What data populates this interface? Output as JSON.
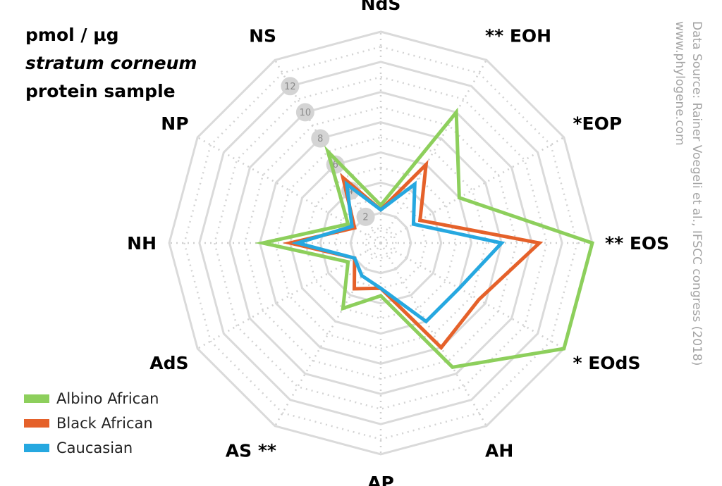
{
  "title": {
    "line1": "pmol / µg",
    "line2": "stratum corneum",
    "line3": "protein sample"
  },
  "source": {
    "line1": "Data Source:  Rainer Voegeli et al., IFSCC congress (2018)",
    "line2": "www.phylogene.com"
  },
  "chart_data": {
    "type": "radar",
    "axes": [
      "NdS",
      "** EOH",
      "*EOP",
      "** EOS",
      "* EOdS",
      "AH",
      "AP",
      "AS **",
      "AdS",
      "NH",
      "NP",
      "NS"
    ],
    "ring_ticks": [
      2,
      4,
      6,
      8,
      10,
      12
    ],
    "range": [
      0,
      14
    ],
    "grid": true,
    "legend_position": "bottom-left",
    "series": [
      {
        "name": "Albino African",
        "color": "#8dcf5c",
        "values": [
          2.5,
          10.0,
          6.0,
          14.0,
          14.0,
          9.5,
          3.5,
          5.0,
          2.5,
          7.8,
          2.5,
          7.0
        ]
      },
      {
        "name": "Black African",
        "color": "#e5612a",
        "values": [
          2.2,
          6.0,
          3.0,
          10.5,
          7.5,
          8.0,
          3.0,
          3.5,
          2.0,
          6.0,
          2.0,
          5.0
        ]
      },
      {
        "name": "Caucasian",
        "color": "#26a8e0",
        "values": [
          2.2,
          4.5,
          2.5,
          8.0,
          6.0,
          6.0,
          3.0,
          2.5,
          2.0,
          5.5,
          2.2,
          4.5
        ]
      }
    ]
  }
}
